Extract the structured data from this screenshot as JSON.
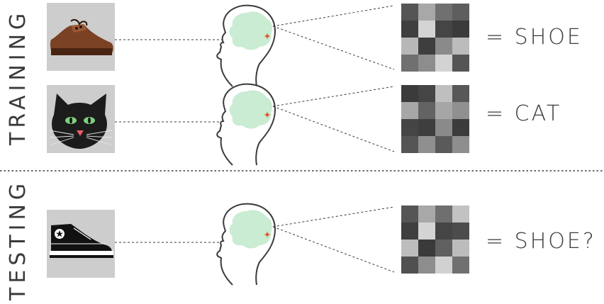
{
  "sections": {
    "training": "TRAINING",
    "testing": "TESTING"
  },
  "rows": [
    {
      "object": "shoe-icon",
      "label": "= SHOE"
    },
    {
      "object": "cat-icon",
      "label": "= CAT"
    },
    {
      "object": "sneaker-icon",
      "label": "= SHOE?"
    }
  ],
  "colors": {
    "brain": "#c9ecd2",
    "thumbnail_bg": "#cdcdcd",
    "neuron": "#e0522d"
  }
}
